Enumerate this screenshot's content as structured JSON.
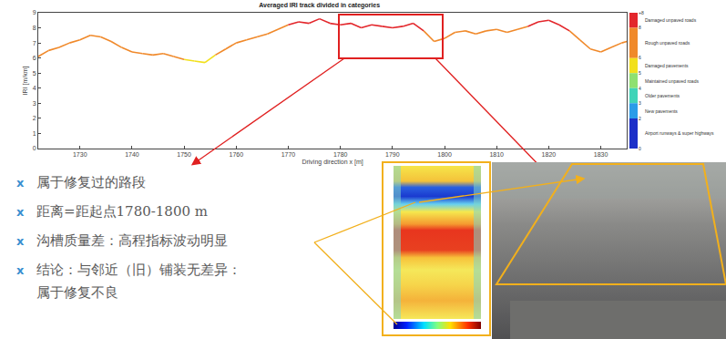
{
  "chart_data": {
    "type": "line",
    "title": "Averaged IRI track divided in categories",
    "xlabel": "Driving direction x [m]",
    "ylabel": "IRI [m/km]",
    "x": [
      1722,
      1724,
      1726,
      1728,
      1730,
      1732,
      1734,
      1736,
      1738,
      1740,
      1742,
      1744,
      1746,
      1748,
      1750,
      1752,
      1754,
      1756,
      1758,
      1760,
      1762,
      1764,
      1766,
      1768,
      1770,
      1772,
      1774,
      1776,
      1778,
      1780,
      1782,
      1784,
      1786,
      1788,
      1790,
      1792,
      1794,
      1796,
      1798,
      1800,
      1802,
      1804,
      1806,
      1808,
      1810,
      1812,
      1814,
      1816,
      1818,
      1820,
      1822,
      1824,
      1826,
      1828,
      1830,
      1832,
      1834,
      1835
    ],
    "values": [
      6.1,
      6.5,
      6.7,
      7.0,
      7.2,
      7.5,
      7.4,
      7.1,
      6.7,
      6.4,
      6.3,
      6.2,
      6.3,
      6.1,
      5.9,
      5.8,
      5.7,
      6.2,
      6.6,
      7.0,
      7.2,
      7.4,
      7.6,
      7.9,
      8.2,
      8.4,
      8.3,
      8.6,
      8.3,
      8.2,
      8.3,
      8.0,
      8.2,
      8.1,
      8.0,
      8.1,
      8.3,
      7.8,
      7.1,
      7.3,
      7.7,
      7.8,
      7.6,
      7.8,
      7.9,
      7.7,
      7.9,
      8.1,
      8.4,
      8.5,
      8.2,
      7.8,
      7.2,
      6.6,
      6.4,
      6.7,
      7.0,
      7.1
    ],
    "xlim": [
      1722,
      1835
    ],
    "xticks": [
      1730,
      1740,
      1750,
      1760,
      1770,
      1780,
      1790,
      1800,
      1810,
      1820,
      1830
    ],
    "ylim": [
      0,
      9
    ],
    "yticks": [
      0,
      1,
      2,
      3,
      4,
      5,
      6,
      7,
      8,
      9
    ],
    "grid": false,
    "colorbar": {
      "ylim": [
        0,
        9
      ],
      "ticks": [
        {
          "value": 9,
          "label": "+8"
        },
        8,
        6,
        5,
        4,
        3,
        2,
        0
      ],
      "bands": [
        {
          "lo": 8,
          "hi": 9,
          "color": "#e3262b",
          "label": "Damaged unpaved roads"
        },
        {
          "lo": 6,
          "hi": 8,
          "color": "#f0892a",
          "label": "Rough unpaved roads"
        },
        {
          "lo": 5,
          "hi": 6,
          "color": "#f2e01c",
          "label": "Damaged pavements"
        },
        {
          "lo": 4,
          "hi": 5,
          "color": "#8fe070",
          "label": "Maintained unpaved roads"
        },
        {
          "lo": 3,
          "hi": 4,
          "color": "#3fd4b8",
          "label": "Older pavements"
        },
        {
          "lo": 2,
          "hi": 3,
          "color": "#2a9ce8",
          "label": "New pavements"
        },
        {
          "lo": 0,
          "hi": 2,
          "color": "#1c2fc8",
          "label": "Airport runways & super highways"
        }
      ]
    }
  },
  "notes": {
    "bullet_marker": "x",
    "items": [
      [
        "属于修复过的路段"
      ],
      [
        "距离=距起点1780-1800 m"
      ],
      [
        "沟槽质量差：高程指标波动明显"
      ],
      [
        "结论：与邻近（旧）铺装无差异：",
        "属于修复不良"
      ]
    ]
  }
}
